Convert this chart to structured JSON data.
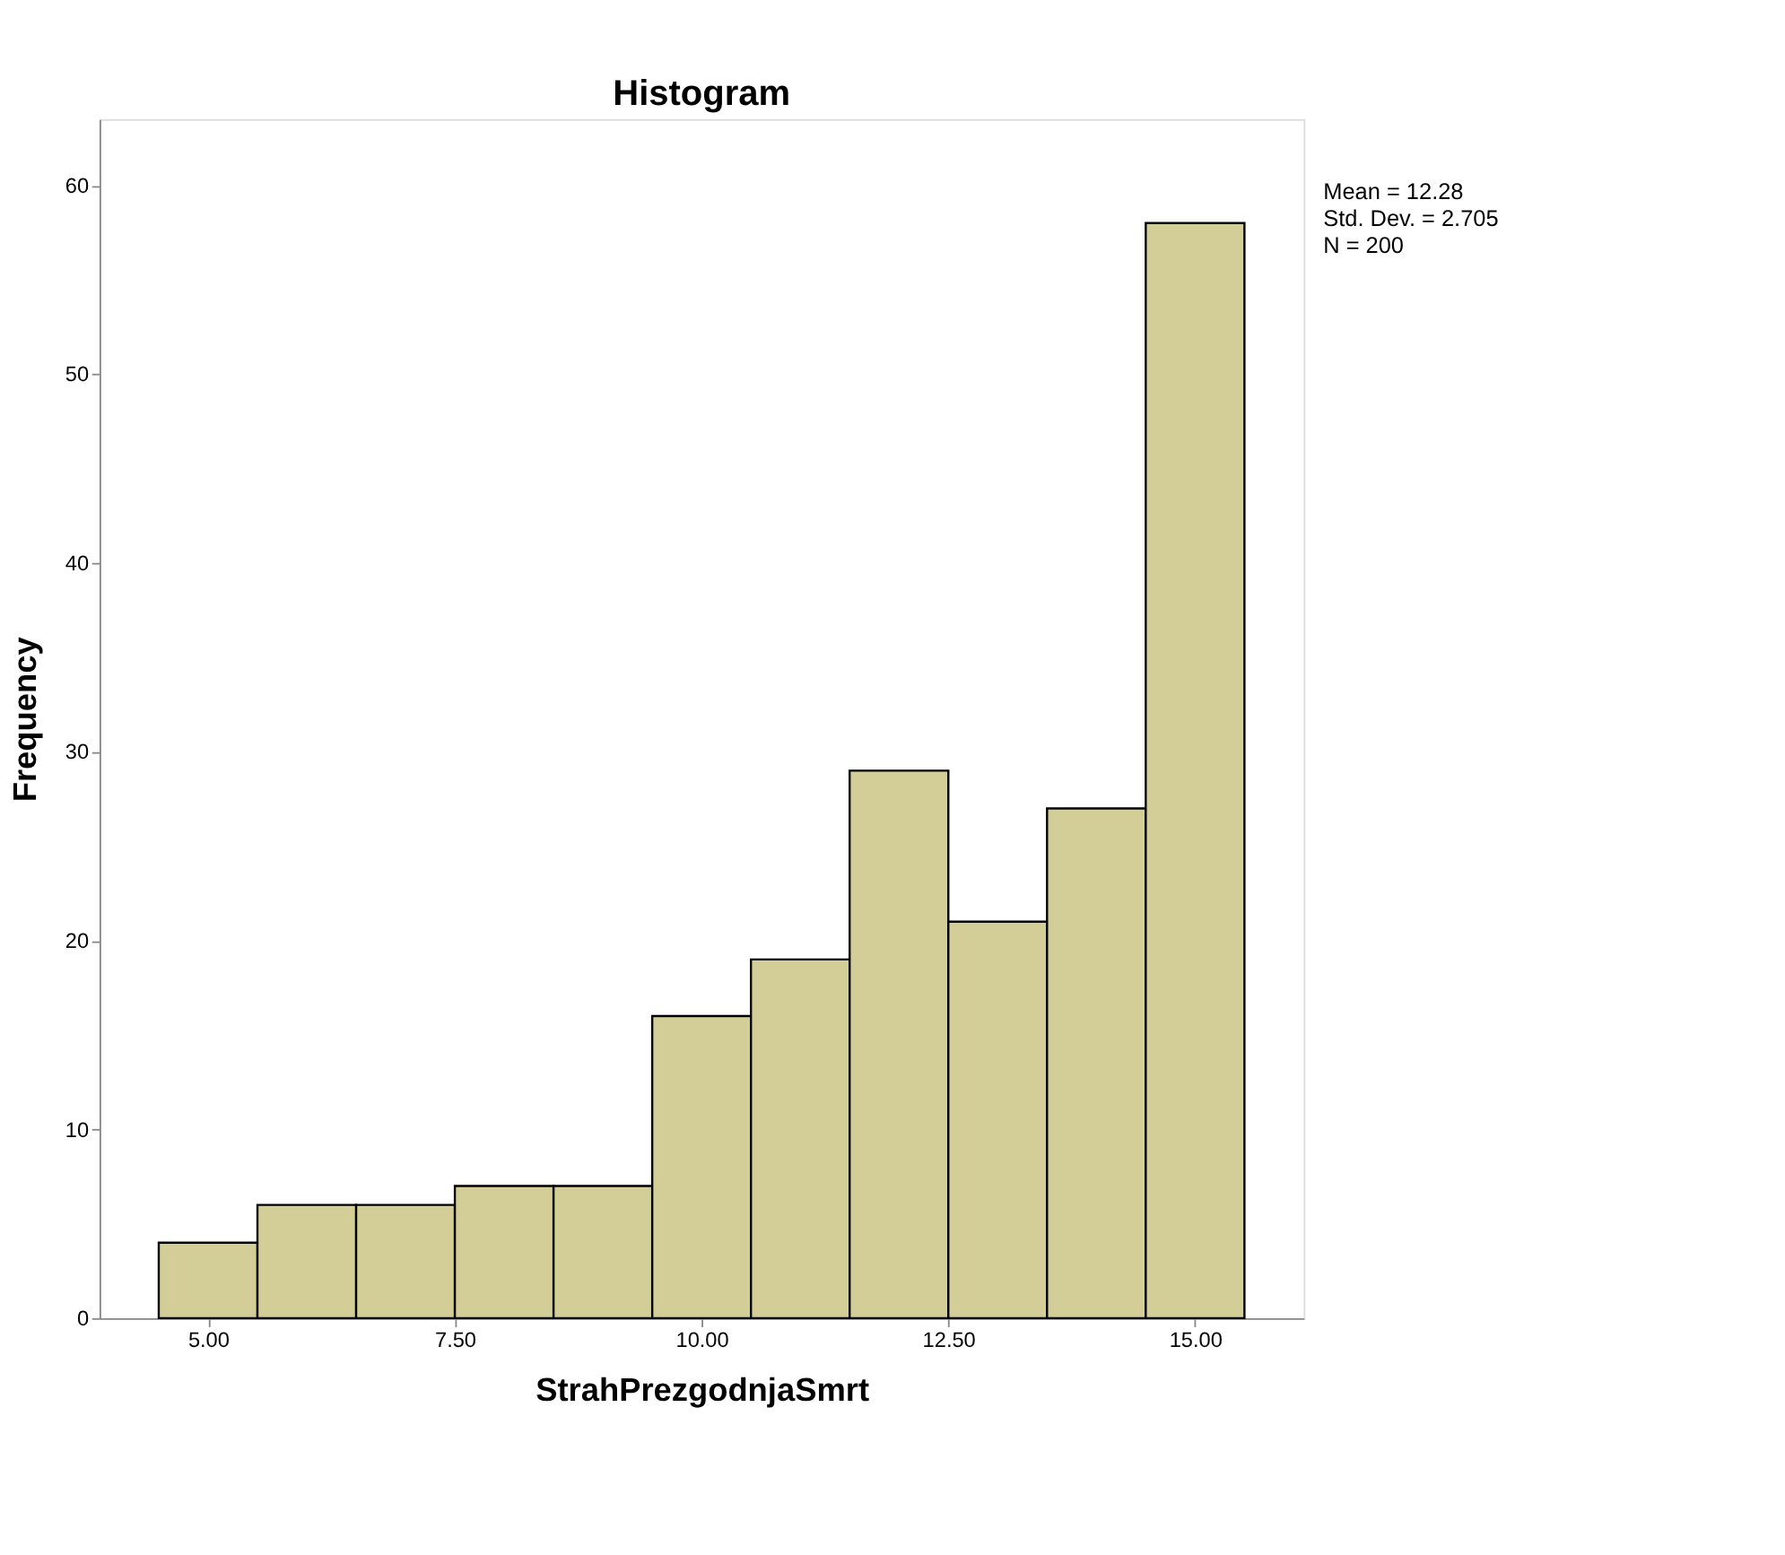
{
  "chart_data": {
    "type": "histogram",
    "title": "Histogram",
    "xlabel": "StrahPrezgodnjaSmrt",
    "ylabel": "Frequency",
    "bins": [
      4.5,
      5.5,
      6.5,
      7.5,
      8.5,
      9.5,
      10.5,
      11.5,
      12.5,
      13.5,
      14.5,
      15.5
    ],
    "values": [
      4,
      6,
      6,
      7,
      7,
      16,
      19,
      29,
      21,
      27,
      58
    ],
    "color": "#d3ce97",
    "xlim": [
      3.9,
      16.1
    ],
    "xticks": [
      {
        "value": 5,
        "label": "5.00"
      },
      {
        "value": 7.5,
        "label": "7.50"
      },
      {
        "value": 10,
        "label": "10.00"
      },
      {
        "value": 12.5,
        "label": "12.50"
      },
      {
        "value": 15,
        "label": "15.00"
      }
    ],
    "ylim": [
      0,
      63.5
    ],
    "yticks": [
      0,
      10,
      20,
      30,
      40,
      50,
      60
    ],
    "annotations": [
      "Mean = 12.28",
      "Std. Dev. = 2.705",
      "N = 200"
    ]
  }
}
